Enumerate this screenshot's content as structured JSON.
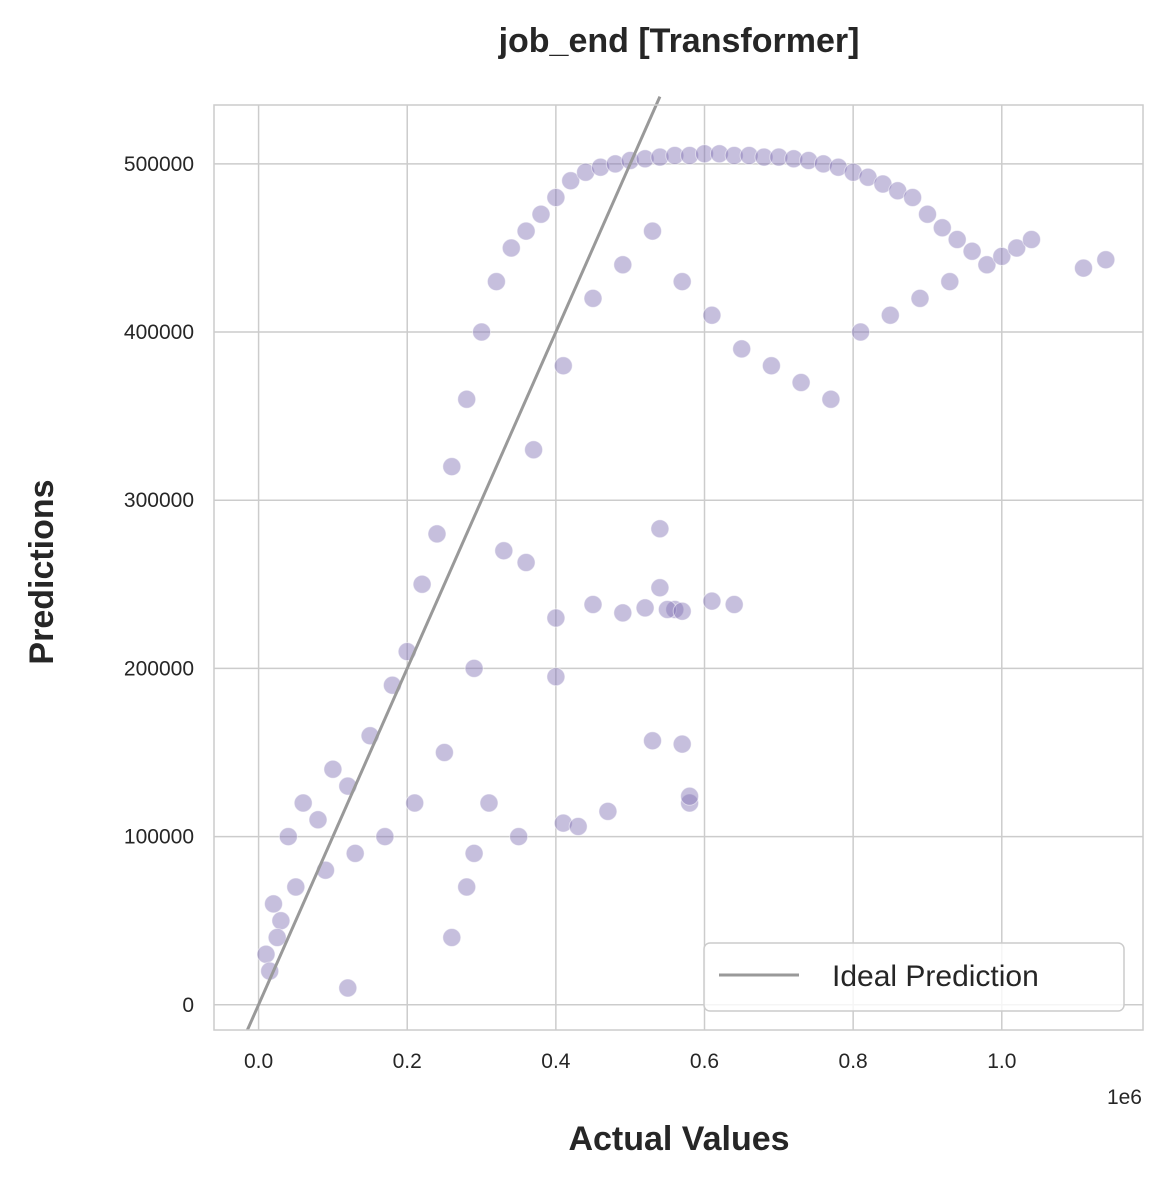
{
  "chart_data": {
    "type": "scatter",
    "title": "job_end [Transformer]",
    "xlabel": "Actual Values",
    "ylabel": "Predictions",
    "x_offset_label": "1e6",
    "xlim": [
      -60000,
      1190000
    ],
    "ylim": [
      -15000,
      535000
    ],
    "x_ticks": [
      0,
      200000,
      400000,
      600000,
      800000,
      1000000
    ],
    "x_tick_labels": [
      "0.0",
      "0.2",
      "0.4",
      "0.6",
      "0.8",
      "1.0"
    ],
    "y_ticks": [
      0,
      100000,
      200000,
      300000,
      400000,
      500000
    ],
    "y_tick_labels": [
      "0",
      "100000",
      "200000",
      "300000",
      "400000",
      "500000"
    ],
    "grid": true,
    "legend_position": "lower-right",
    "legend_entries": [
      "Ideal Prediction"
    ],
    "ideal_line": {
      "x": [
        -15000,
        540000
      ],
      "y": [
        -15000,
        540000
      ]
    },
    "point_color": "#8172b3",
    "line_color": "#999999",
    "grid_color": "#cccccc",
    "series": [
      {
        "name": "",
        "x": [
          10000,
          20000,
          30000,
          40000,
          60000,
          80000,
          100000,
          120000,
          150000,
          180000,
          200000,
          220000,
          240000,
          260000,
          280000,
          300000,
          320000,
          340000,
          360000,
          380000,
          400000,
          420000,
          440000,
          460000,
          480000,
          500000,
          520000,
          540000,
          560000,
          580000,
          600000,
          620000,
          640000,
          660000,
          680000,
          700000,
          720000,
          740000,
          760000,
          780000,
          800000,
          820000,
          840000,
          860000,
          880000,
          900000,
          920000,
          940000,
          960000,
          980000,
          1000000,
          1020000,
          1040000,
          1110000,
          1140000,
          15000,
          25000,
          50000,
          90000,
          130000,
          170000,
          210000,
          250000,
          290000,
          330000,
          370000,
          410000,
          450000,
          490000,
          530000,
          570000,
          610000,
          650000,
          690000,
          730000,
          770000,
          810000,
          850000,
          890000,
          930000,
          120000,
          350000,
          360000,
          400000,
          410000,
          450000,
          470000,
          490000,
          520000,
          530000,
          540000,
          560000,
          570000,
          580000,
          610000,
          640000,
          540000,
          550000,
          570000,
          580000,
          400000,
          430000,
          310000,
          290000,
          280000,
          260000
        ],
        "y": [
          30000,
          60000,
          50000,
          100000,
          120000,
          110000,
          140000,
          130000,
          160000,
          190000,
          210000,
          250000,
          280000,
          320000,
          360000,
          400000,
          430000,
          450000,
          460000,
          470000,
          480000,
          490000,
          495000,
          498000,
          500000,
          502000,
          503000,
          504000,
          505000,
          505000,
          506000,
          506000,
          505000,
          505000,
          504000,
          504000,
          503000,
          502000,
          500000,
          498000,
          495000,
          492000,
          488000,
          484000,
          480000,
          470000,
          462000,
          455000,
          448000,
          440000,
          445000,
          450000,
          455000,
          438000,
          443000,
          20000,
          40000,
          70000,
          80000,
          90000,
          100000,
          120000,
          150000,
          200000,
          270000,
          330000,
          380000,
          420000,
          440000,
          460000,
          430000,
          410000,
          390000,
          380000,
          370000,
          360000,
          400000,
          410000,
          420000,
          430000,
          10000,
          100000,
          263000,
          230000,
          108000,
          238000,
          115000,
          233000,
          236000,
          157000,
          283000,
          235000,
          155000,
          120000,
          240000,
          238000,
          248000,
          235000,
          234000,
          124000,
          195000,
          106000,
          120000,
          90000,
          70000,
          40000
        ]
      }
    ]
  }
}
